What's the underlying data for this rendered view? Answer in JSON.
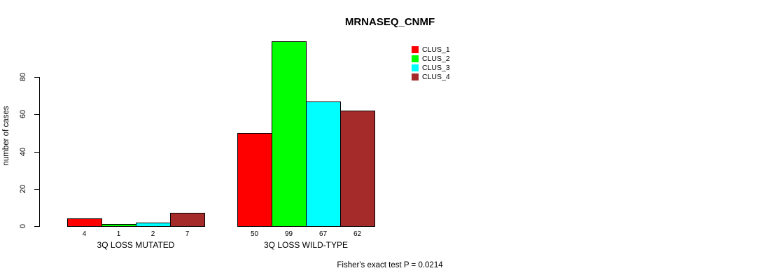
{
  "chart_data": {
    "type": "bar",
    "title": "MRNASEQ_CNMF",
    "ylabel": "number of cases",
    "xlabel": "",
    "categories": [
      "3Q LOSS MUTATED",
      "3Q LOSS WILD-TYPE"
    ],
    "series": [
      {
        "name": "CLUS_1",
        "color": "#FF0000",
        "values": [
          4,
          50
        ]
      },
      {
        "name": "CLUS_2",
        "color": "#00FF00",
        "values": [
          1,
          99
        ]
      },
      {
        "name": "CLUS_3",
        "color": "#00FFFF",
        "values": [
          2,
          67
        ]
      },
      {
        "name": "CLUS_4",
        "color": "#A52A2A",
        "values": [
          7,
          62
        ]
      }
    ],
    "yticks": [
      0,
      20,
      40,
      60,
      80
    ],
    "ylim": [
      0,
      100
    ],
    "grid": false,
    "legend_position": "top-right",
    "bar_value_labels_shown": true,
    "annotation": "Fisher's exact test P = 0.0214"
  }
}
